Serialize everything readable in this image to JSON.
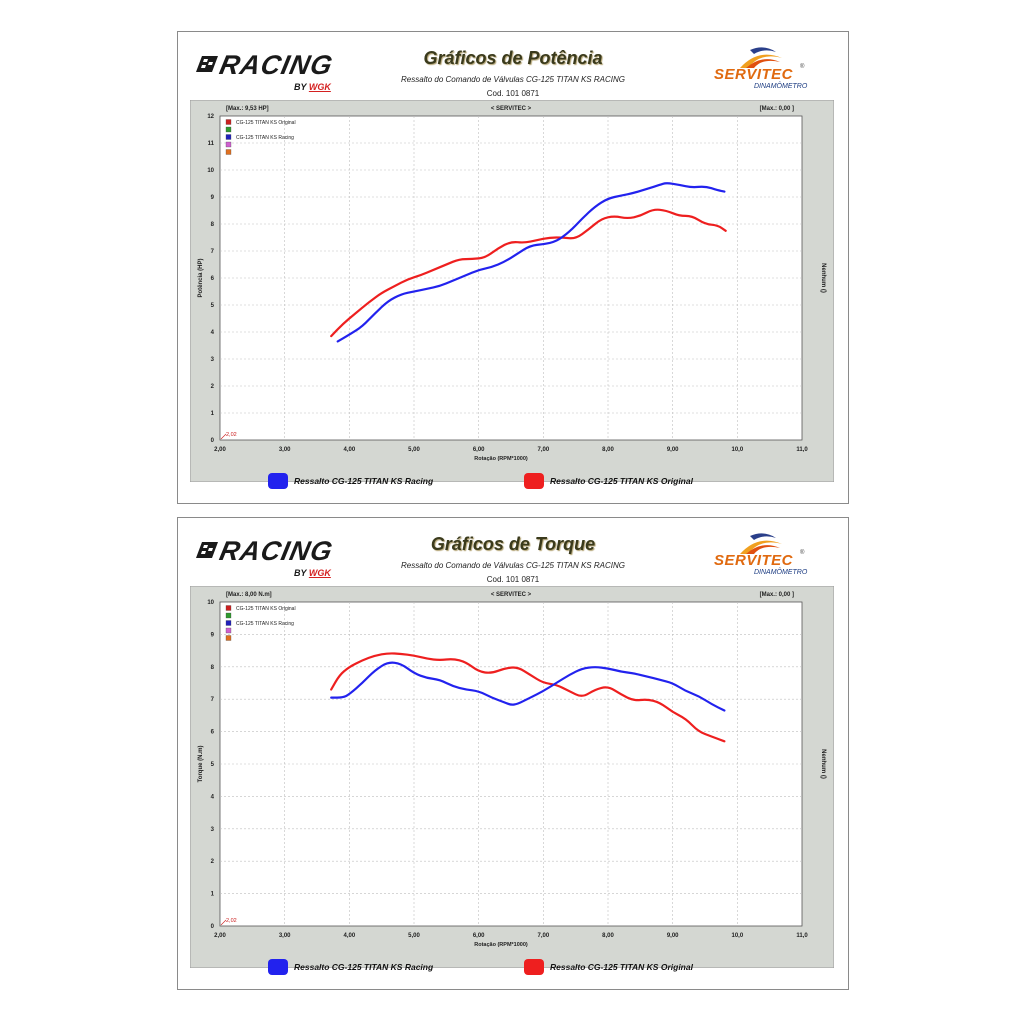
{
  "colors": {
    "racing": "#2222ee",
    "original": "#ee1f1f",
    "frame": "#d4d7d2",
    "grid": "#bfbfbf"
  },
  "brand": {
    "racing": "RACING",
    "racing_by": "BY",
    "racing_wgk": "WGK",
    "servitec": "SERVITEC",
    "servitec_sub": "DINAMÔMETRO",
    "servitec_reg": "®"
  },
  "panels": [
    {
      "title": "Gráficos de Potência",
      "subtitle": "Ressalto do Comando de Válvulas CG-125 TITAN KS RACING",
      "code": "Cod. 101 0871",
      "max_label": "[Max.: 9,53 HP]",
      "center_label": "< SERVITEC >",
      "right_max_label": "[Max.: 0,00 ]",
      "right_axis_label": "Nenhum ()",
      "corner_label": "2,02",
      "legend_racing": "Ressalto CG-125 TITAN KS Racing",
      "legend_original": "Ressalto CG-125 TITAN KS Original",
      "chart_data": {
        "type": "line",
        "xlabel": "Rotação (RPM*1000)",
        "ylabel": "Potência (HP)",
        "xlim": [
          2.0,
          11.0
        ],
        "ylim": [
          0,
          12
        ],
        "xticks": [
          "2,00",
          "3,00",
          "4,00",
          "5,00",
          "6,00",
          "7,00",
          "8,00",
          "9,00",
          "10,0",
          "11,0"
        ],
        "yticks": [
          "0",
          "1",
          "2",
          "3",
          "4",
          "5",
          "6",
          "7",
          "8",
          "9",
          "10",
          "11",
          "12"
        ],
        "inner_legend": [
          "CG-125 TITAN KS Original",
          "",
          "CG-125 TITAN KS Racing",
          "",
          ""
        ],
        "inner_legend_colors": [
          "#cc2020",
          "#2e9a2e",
          "#2020bb",
          "#d060d0",
          "#e07020"
        ],
        "series": [
          {
            "name": "CG-125 TITAN KS Original",
            "color": "#ee1f1f",
            "x": [
              3.72,
              3.9,
              4.1,
              4.3,
              4.5,
              4.7,
              4.9,
              5.1,
              5.3,
              5.5,
              5.7,
              5.9,
              6.1,
              6.3,
              6.5,
              6.7,
              6.9,
              7.1,
              7.3,
              7.5,
              7.7,
              7.9,
              8.1,
              8.3,
              8.5,
              8.7,
              8.9,
              9.1,
              9.3,
              9.5,
              9.7,
              9.82
            ],
            "y": [
              3.85,
              4.3,
              4.7,
              5.1,
              5.45,
              5.7,
              5.95,
              6.1,
              6.3,
              6.5,
              6.7,
              6.7,
              6.75,
              7.1,
              7.35,
              7.3,
              7.4,
              7.5,
              7.5,
              7.45,
              7.8,
              8.2,
              8.3,
              8.2,
              8.3,
              8.55,
              8.5,
              8.3,
              8.3,
              8.0,
              7.95,
              7.75
            ]
          },
          {
            "name": "CG-125 TITAN KS Racing",
            "color": "#2222ee",
            "x": [
              3.82,
              4.0,
              4.2,
              4.4,
              4.6,
              4.8,
              5.0,
              5.2,
              5.4,
              5.6,
              5.8,
              6.0,
              6.2,
              6.4,
              6.6,
              6.8,
              7.0,
              7.2,
              7.4,
              7.6,
              7.8,
              8.0,
              8.2,
              8.4,
              8.6,
              8.8,
              8.9,
              9.1,
              9.3,
              9.5,
              9.7,
              9.8
            ],
            "y": [
              3.65,
              3.9,
              4.2,
              4.7,
              5.15,
              5.4,
              5.5,
              5.6,
              5.7,
              5.9,
              6.1,
              6.3,
              6.4,
              6.6,
              6.9,
              7.2,
              7.25,
              7.35,
              7.7,
              8.2,
              8.65,
              8.95,
              9.05,
              9.15,
              9.3,
              9.45,
              9.53,
              9.45,
              9.35,
              9.4,
              9.25,
              9.2
            ]
          }
        ]
      }
    },
    {
      "title": "Gráficos de Torque",
      "subtitle": "Ressalto do Comando de Válvulas CG-125 TITAN KS RACING",
      "code": "Cod. 101 0871",
      "max_label": "[Max.: 8,00 N.m]",
      "center_label": "< SERVITEC >",
      "right_max_label": "[Max.: 0,00 ]",
      "right_axis_label": "Nenhum ()",
      "corner_label": "2,02",
      "legend_racing": "Ressalto CG-125 TITAN KS Racing",
      "legend_original": "Ressalto CG-125 TITAN KS Original",
      "chart_data": {
        "type": "line",
        "xlabel": "Rotação (RPM*1000)",
        "ylabel": "Torque (N.m)",
        "xlim": [
          2.0,
          11.0
        ],
        "ylim": [
          0,
          10
        ],
        "xticks": [
          "2,00",
          "3,00",
          "4,00",
          "5,00",
          "6,00",
          "7,00",
          "8,00",
          "9,00",
          "10,0",
          "11,0"
        ],
        "yticks": [
          "0",
          "1",
          "2",
          "3",
          "4",
          "5",
          "6",
          "7",
          "8",
          "9",
          "10"
        ],
        "inner_legend": [
          "CG-125 TITAN KS Original",
          "",
          "CG-125 TITAN KS Racing",
          "",
          ""
        ],
        "inner_legend_colors": [
          "#cc2020",
          "#2e9a2e",
          "#2020bb",
          "#d060d0",
          "#e07020"
        ],
        "series": [
          {
            "name": "CG-125 TITAN KS Original",
            "color": "#ee1f1f",
            "x": [
              3.72,
              3.85,
              4.0,
              4.2,
              4.4,
              4.6,
              4.8,
              5.0,
              5.2,
              5.4,
              5.6,
              5.8,
              6.0,
              6.2,
              6.4,
              6.6,
              6.8,
              7.0,
              7.2,
              7.4,
              7.6,
              7.8,
              8.0,
              8.2,
              8.4,
              8.6,
              8.8,
              9.0,
              9.2,
              9.4,
              9.6,
              9.8
            ],
            "y": [
              7.3,
              7.75,
              8.0,
              8.2,
              8.35,
              8.42,
              8.4,
              8.35,
              8.25,
              8.2,
              8.25,
              8.15,
              7.85,
              7.8,
              7.95,
              8.0,
              7.75,
              7.5,
              7.45,
              7.25,
              7.05,
              7.3,
              7.4,
              7.15,
              6.95,
              7.0,
              6.9,
              6.6,
              6.4,
              6.0,
              5.85,
              5.7
            ]
          },
          {
            "name": "CG-125 TITAN KS Racing",
            "color": "#2222ee",
            "x": [
              3.72,
              3.9,
              4.0,
              4.2,
              4.4,
              4.6,
              4.8,
              5.0,
              5.2,
              5.4,
              5.6,
              5.8,
              6.0,
              6.2,
              6.4,
              6.5,
              6.6,
              6.8,
              7.0,
              7.2,
              7.4,
              7.6,
              7.8,
              8.0,
              8.2,
              8.4,
              8.6,
              8.8,
              9.0,
              9.2,
              9.4,
              9.6,
              9.8
            ],
            "y": [
              7.05,
              7.05,
              7.15,
              7.5,
              7.9,
              8.15,
              8.1,
              7.8,
              7.65,
              7.6,
              7.4,
              7.3,
              7.25,
              7.05,
              6.9,
              6.82,
              6.85,
              7.05,
              7.25,
              7.5,
              7.75,
              7.95,
              8.0,
              7.95,
              7.85,
              7.8,
              7.7,
              7.6,
              7.5,
              7.25,
              7.1,
              6.85,
              6.65
            ]
          }
        ]
      }
    }
  ]
}
